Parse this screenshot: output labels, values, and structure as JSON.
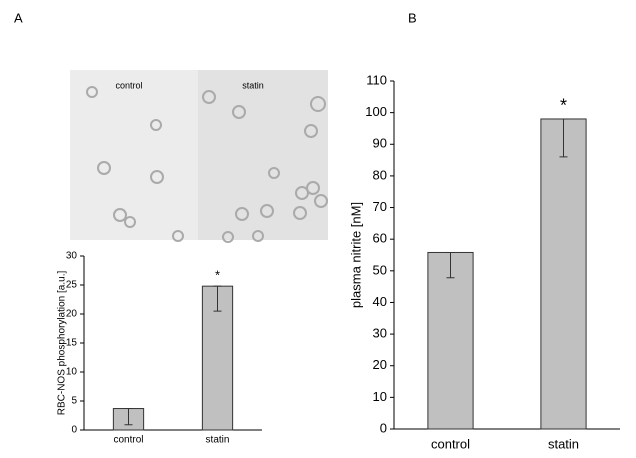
{
  "panels": [
    {
      "label": "A",
      "image_labels": [
        "control",
        "statin"
      ]
    },
    {
      "label": "B"
    }
  ],
  "chart_data": [
    {
      "type": "bar",
      "y_label": "RBC-NOS phosphorylation [a.u.]",
      "categories": [
        "control",
        "statin"
      ],
      "values": [
        3.7,
        24.8
      ],
      "errors": [
        2.8,
        4.3
      ],
      "significance_labels": [
        null,
        "*"
      ],
      "color": "#c0c0c0",
      "ylim": [
        0,
        30
      ],
      "yticks": [
        0,
        5,
        10,
        15,
        20,
        25,
        30
      ]
    },
    {
      "type": "bar",
      "y_label": "plasma nitrite [nM]",
      "categories": [
        "control",
        "statin"
      ],
      "values": [
        55.8,
        98
      ],
      "errors": [
        8,
        12
      ],
      "significance_labels": [
        null,
        "*"
      ],
      "color": "#c0c0c0",
      "ylim": [
        0,
        110
      ],
      "yticks": [
        0,
        10,
        20,
        30,
        40,
        50,
        60,
        70,
        80,
        90,
        100,
        110
      ]
    }
  ]
}
